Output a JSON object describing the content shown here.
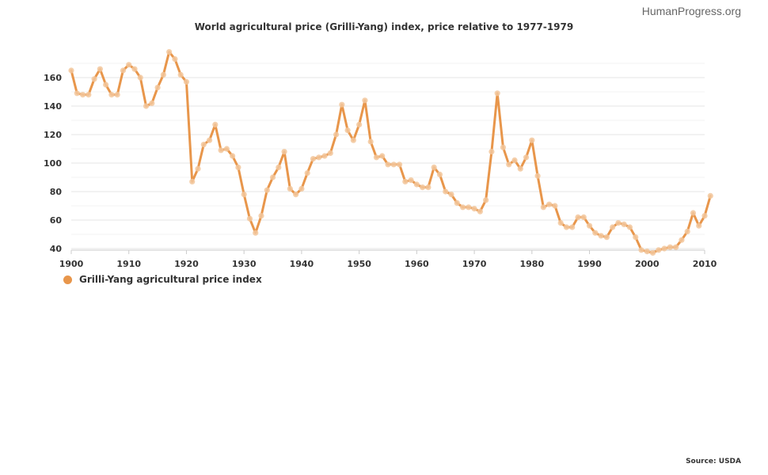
{
  "branding": "HumanProgress.org",
  "source": "Source: USDA",
  "chart_data": {
    "type": "line",
    "title": "World agricultural price (Grilli-Yang) index, price relative to 1977-1979",
    "xlabel": "",
    "ylabel": "",
    "xlim": [
      1900,
      2010
    ],
    "ylim": [
      40,
      170
    ],
    "x_ticks": [
      1900,
      1910,
      1920,
      1930,
      1940,
      1950,
      1960,
      1970,
      1980,
      1990,
      2000,
      2010
    ],
    "y_ticks": [
      40,
      60,
      80,
      100,
      120,
      140,
      160
    ],
    "grid": true,
    "legend_position": "bottom-left",
    "colors": {
      "line": "#E8964B",
      "marker": "#F2C79C",
      "grid": "#E6E6E6",
      "axis": "#CCCCCC"
    },
    "series": [
      {
        "name": "Grilli-Yang agricultural price index",
        "x": [
          1900,
          1901,
          1902,
          1903,
          1904,
          1905,
          1906,
          1907,
          1908,
          1909,
          1910,
          1911,
          1912,
          1913,
          1914,
          1915,
          1916,
          1917,
          1918,
          1919,
          1920,
          1921,
          1922,
          1923,
          1924,
          1925,
          1926,
          1927,
          1928,
          1929,
          1930,
          1931,
          1932,
          1933,
          1934,
          1935,
          1936,
          1937,
          1938,
          1939,
          1940,
          1941,
          1942,
          1943,
          1944,
          1945,
          1946,
          1947,
          1948,
          1949,
          1950,
          1951,
          1952,
          1953,
          1954,
          1955,
          1956,
          1957,
          1958,
          1959,
          1960,
          1961,
          1962,
          1963,
          1964,
          1965,
          1966,
          1967,
          1968,
          1969,
          1970,
          1971,
          1972,
          1973,
          1974,
          1975,
          1976,
          1977,
          1978,
          1979,
          1980,
          1981,
          1982,
          1983,
          1984,
          1985,
          1986,
          1987,
          1988,
          1989,
          1990,
          1991,
          1992,
          1993,
          1994,
          1995,
          1996,
          1997,
          1998,
          1999,
          2000,
          2001,
          2002,
          2003,
          2004,
          2005,
          2006,
          2007,
          2008,
          2009,
          2010,
          2011
        ],
        "values": [
          165,
          149,
          148,
          148,
          159,
          166,
          155,
          148,
          148,
          165,
          169,
          166,
          160,
          140,
          142,
          153,
          162,
          178,
          173,
          162,
          157,
          87,
          96,
          113,
          116,
          127,
          109,
          110,
          105,
          97,
          78,
          61,
          51,
          63,
          81,
          90,
          97,
          108,
          82,
          78,
          82,
          93,
          103,
          104,
          105,
          107,
          120,
          141,
          123,
          116,
          127,
          144,
          115,
          104,
          105,
          99,
          99,
          99,
          87,
          88,
          85,
          83,
          83,
          97,
          92,
          80,
          78,
          72,
          69,
          69,
          68,
          66,
          74,
          108,
          149,
          111,
          99,
          102,
          96,
          104,
          116,
          91,
          69,
          71,
          70,
          58,
          55,
          55,
          62,
          62,
          56,
          51,
          49,
          48,
          55,
          58,
          57,
          55,
          48,
          39,
          38,
          37,
          39,
          40,
          41,
          41,
          46,
          52,
          65,
          56,
          63,
          77
        ]
      }
    ]
  }
}
